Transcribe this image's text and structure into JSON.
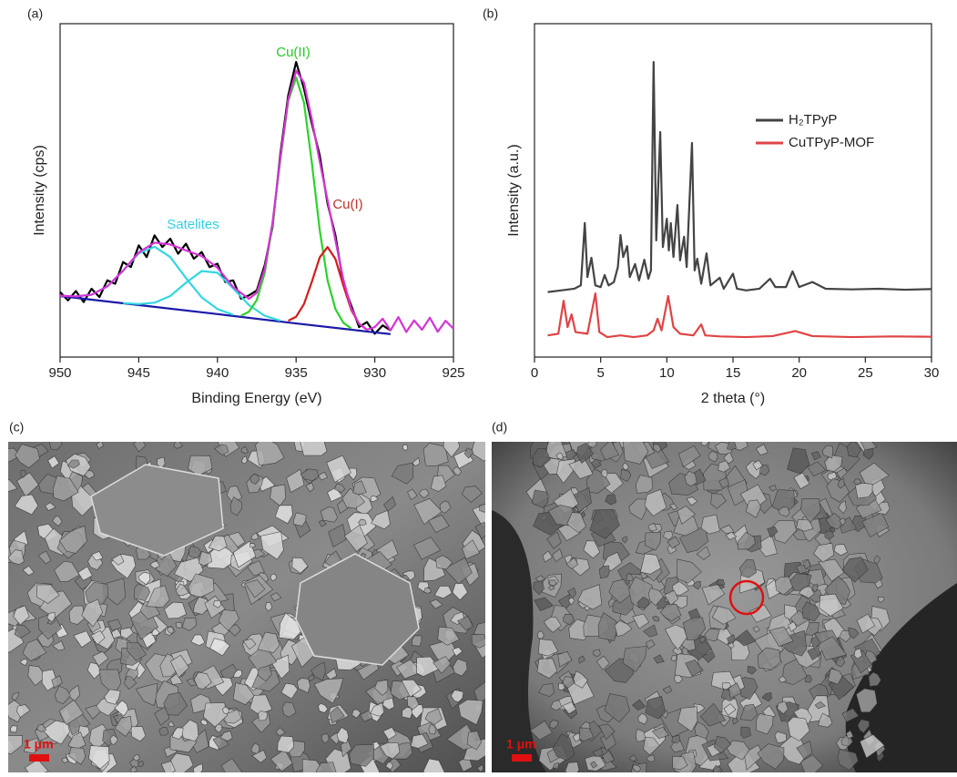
{
  "chart_data": [
    {
      "type": "line",
      "panel_label": "(a)",
      "xlabel": "Binding Energy (eV)",
      "ylabel": "Intensity (cps)",
      "xlim": [
        950,
        925
      ],
      "ylim": [
        0,
        100
      ],
      "xticks": [
        950,
        945,
        940,
        935,
        930,
        925
      ],
      "annotations": [
        {
          "text": "Cu(II)",
          "color": "#22cc22"
        },
        {
          "text": "Cu(I)",
          "color": "#c0302a"
        },
        {
          "text": "Satelites",
          "color": "#33d0e0"
        }
      ],
      "series": [
        {
          "color": "#000000",
          "x": [
            950,
            949.5,
            949,
            948.5,
            948,
            947.5,
            947,
            946.5,
            946,
            945.5,
            945,
            944.5,
            944,
            943.5,
            943,
            942.5,
            942,
            941.5,
            941,
            940.5,
            940,
            939.5,
            939,
            938.5,
            938,
            937.5,
            937,
            936.5,
            936,
            935.5,
            935,
            934.5,
            934,
            933.5,
            933,
            932.5,
            932,
            931.5,
            931,
            930.5,
            930,
            929.5,
            929
          ],
          "values": [
            19.5,
            17.0,
            19.8,
            16.5,
            20.5,
            18.0,
            23.0,
            22.0,
            28.5,
            27.0,
            33.5,
            30.0,
            36.5,
            33.0,
            35.5,
            31.0,
            34.0,
            29.5,
            31.5,
            27.0,
            28.0,
            22.5,
            23.0,
            17.5,
            18.5,
            20.0,
            27.5,
            39.0,
            61.0,
            78.5,
            88.5,
            80.5,
            70.0,
            60.5,
            46.0,
            36.5,
            22.0,
            15.5,
            9.0,
            10.5,
            7.0,
            9.5,
            8.0
          ]
        },
        {
          "color": "#1a1aa8",
          "x": [
            950,
            945,
            940,
            935,
            930,
            929
          ],
          "values": [
            18.3,
            15.6,
            12.9,
            10.1,
            7.4,
            6.9
          ]
        },
        {
          "color": "#33d6e0",
          "x": [
            949,
            948,
            947,
            946,
            945,
            944,
            943,
            942,
            941,
            940,
            939
          ],
          "values": [
            18.2,
            18.7,
            21.2,
            25.9,
            31.1,
            33.1,
            30.0,
            23.7,
            17.9,
            14.4,
            12.7
          ]
        },
        {
          "color": "#33d6e0",
          "x": [
            946,
            945,
            944,
            943,
            942,
            941,
            940,
            939,
            938,
            937,
            936
          ],
          "values": [
            16.2,
            15.9,
            16.3,
            18.3,
            22.3,
            25.8,
            25.3,
            20.6,
            15.6,
            12.4,
            10.9
          ]
        },
        {
          "color": "#2ed12e",
          "x": [
            938.5,
            938,
            937.5,
            937,
            936.5,
            936,
            935.5,
            935,
            934.5,
            934,
            933.5,
            933,
            932.5,
            932,
            931.5
          ],
          "values": [
            12.4,
            13.6,
            17.1,
            25.2,
            39.7,
            59.4,
            76.8,
            83.9,
            76.3,
            58.3,
            38.1,
            23.0,
            14.4,
            10.3,
            8.6
          ]
        },
        {
          "color": "#d01c1c",
          "x": [
            935.5,
            935,
            934.5,
            934,
            933.5,
            933,
            932.5,
            932,
            931.5,
            931,
            930.5
          ],
          "values": [
            10.9,
            12.1,
            15.9,
            22.6,
            29.9,
            33.0,
            29.4,
            21.5,
            14.2,
            10.0,
            8.2
          ]
        },
        {
          "color": "#d633d6",
          "x": [
            950,
            949,
            948,
            947,
            946,
            945,
            944,
            943,
            942,
            941,
            940,
            939,
            938,
            937.5,
            937,
            936.5,
            936,
            935.5,
            935,
            934.5,
            934,
            933.5,
            933,
            932.5,
            932,
            931.5,
            931,
            930.5,
            930,
            929.5,
            929,
            928.5,
            928,
            927.5,
            927,
            926.5,
            926,
            925.5,
            925
          ],
          "values": [
            18.4,
            18.2,
            18.7,
            21.2,
            25.9,
            31.4,
            34.3,
            33.8,
            32.0,
            30.3,
            26.8,
            21.0,
            17.5,
            19.3,
            26.4,
            40.3,
            59.8,
            77.3,
            85.9,
            82.3,
            71.3,
            58.7,
            47.0,
            35.0,
            23.3,
            14.6,
            10.0,
            8.2,
            9.0,
            11.5,
            8.0,
            12.0,
            7.5,
            11.0,
            8.2,
            11.8,
            7.6,
            10.9,
            8.5
          ]
        }
      ]
    },
    {
      "type": "line",
      "panel_label": "(b)",
      "xlabel": "2 theta (°)",
      "ylabel": "Intensity (a.u.)",
      "xlim": [
        0,
        30
      ],
      "ylim": [
        0,
        100
      ],
      "xticks": [
        0,
        5,
        10,
        15,
        20,
        25,
        30
      ],
      "legend": "upper right",
      "series": [
        {
          "name": "H₂TPyP",
          "color": "#444444",
          "x": [
            1.0,
            2.0,
            3.0,
            3.5,
            3.8,
            4.0,
            4.3,
            4.6,
            5.0,
            5.3,
            5.6,
            6.0,
            6.3,
            6.5,
            6.7,
            7.0,
            7.2,
            7.6,
            7.9,
            8.3,
            8.6,
            8.8,
            9.0,
            9.2,
            9.5,
            9.7,
            10.0,
            10.15,
            10.3,
            10.5,
            10.8,
            11.0,
            11.3,
            11.5,
            11.9,
            12.1,
            12.3,
            12.6,
            13.0,
            13.3,
            14.0,
            14.3,
            15.0,
            15.3,
            16.0,
            17.0,
            17.8,
            18.2,
            19.0,
            19.5,
            20.0,
            21.0,
            22.0,
            24.0,
            26.0,
            28.0,
            30.0
          ],
          "values": [
            19.5,
            20.0,
            20.5,
            21.5,
            40.2,
            24.0,
            29.8,
            21.5,
            21.0,
            24.6,
            21.5,
            22.5,
            27.0,
            36.6,
            30.0,
            33.3,
            24.0,
            27.9,
            23.0,
            29.2,
            23.5,
            26.0,
            88.5,
            35.0,
            67.5,
            33.0,
            41.5,
            32.0,
            40.2,
            30.0,
            45.6,
            29.0,
            36.1,
            27.0,
            64.2,
            26.0,
            29.5,
            22.0,
            31.1,
            21.5,
            23.8,
            20.5,
            25.0,
            20.5,
            20.0,
            20.5,
            23.5,
            21.0,
            21.0,
            25.7,
            21.0,
            22.5,
            20.5,
            20.3,
            20.5,
            20.2,
            20.4
          ]
        },
        {
          "name": "CuTPyP-MOF",
          "color": "#e04444",
          "x": [
            1.0,
            1.8,
            2.2,
            2.5,
            2.8,
            3.1,
            4.0,
            4.6,
            4.9,
            5.5,
            6.5,
            7.5,
            8.5,
            9.0,
            9.3,
            9.6,
            10.1,
            10.5,
            11.0,
            12.0,
            12.6,
            12.9,
            14.0,
            16.0,
            18.0,
            19.7,
            21.0,
            24.0,
            27.0,
            30.0
          ],
          "values": [
            6.5,
            7.0,
            16.9,
            9.0,
            12.8,
            7.5,
            7.0,
            19.1,
            7.5,
            6.0,
            6.5,
            6.0,
            6.5,
            8.0,
            11.5,
            8.0,
            18.3,
            9.0,
            7.0,
            6.5,
            9.8,
            6.5,
            6.2,
            6.0,
            6.3,
            7.8,
            6.3,
            6.0,
            6.2,
            6.1
          ]
        }
      ]
    }
  ],
  "images": [
    {
      "panel_label": "(c)",
      "scale_bar": "1 μm"
    },
    {
      "panel_label": "(d)",
      "scale_bar": "1 μm"
    }
  ]
}
